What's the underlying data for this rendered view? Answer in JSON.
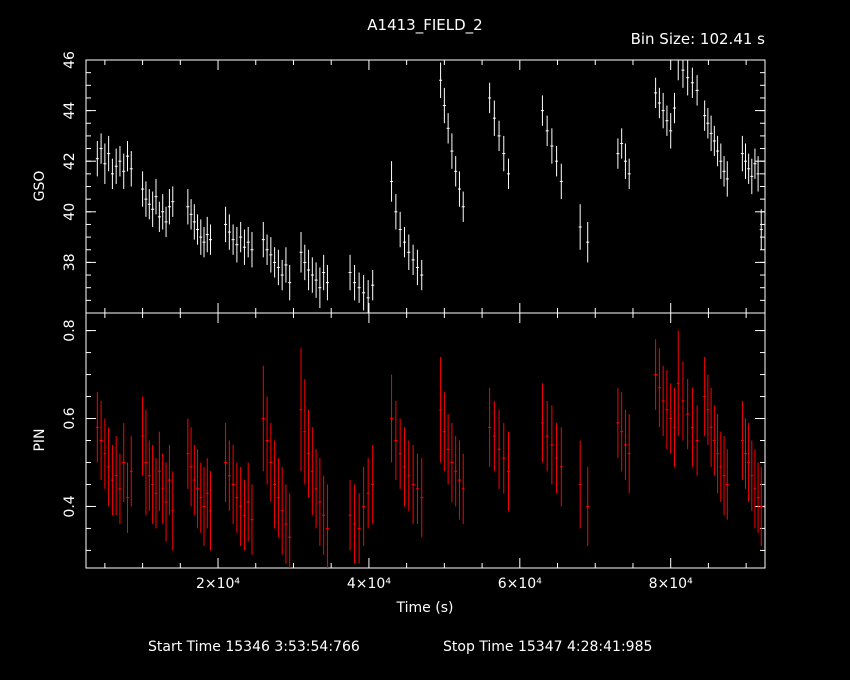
{
  "header": {
    "title": "A1413_FIELD_2",
    "bin_size": "Bin Size: 102.41 s"
  },
  "footer": {
    "start_label": "Start Time 15346  3:53:54:766",
    "stop_label": "Stop Time 15347  4:28:41:985"
  },
  "chart_data": [
    {
      "type": "scatter",
      "name": "GSO",
      "ylabel": "GSO",
      "xlabel": "",
      "color": "#ffffff",
      "xlim": [
        2500,
        92500
      ],
      "ylim": [
        36.0,
        46.0
      ],
      "yticks": [
        38,
        40,
        42,
        44,
        46
      ],
      "ytick_labels": [
        "38",
        "40",
        "42",
        "44",
        "46"
      ],
      "xticks": [
        20000,
        40000,
        60000,
        80000
      ],
      "segments": [
        {
          "start": 4000,
          "end": 8500,
          "y": [
            42.1,
            42.5,
            41.9,
            42.3,
            41.5,
            41.8,
            42.0,
            41.6,
            42.2,
            41.7
          ],
          "err": [
            0.7,
            0.6,
            0.8,
            0.7,
            0.6,
            0.7,
            0.6,
            0.7,
            0.6,
            0.7
          ]
        },
        {
          "start": 10000,
          "end": 14000,
          "y": [
            40.9,
            40.5,
            40.3,
            40.1,
            40.6,
            39.8,
            40.0,
            39.6,
            40.2,
            40.4
          ],
          "err": [
            0.7,
            0.7,
            0.6,
            0.7,
            0.7,
            0.6,
            0.7,
            0.6,
            0.7,
            0.6
          ]
        },
        {
          "start": 16000,
          "end": 19000,
          "y": [
            40.2,
            39.9,
            39.6,
            39.3,
            39.0,
            38.8,
            39.1,
            38.9
          ],
          "err": [
            0.7,
            0.6,
            0.7,
            0.6,
            0.7,
            0.6,
            0.7,
            0.6
          ]
        },
        {
          "start": 21000,
          "end": 24500,
          "y": [
            39.5,
            39.2,
            38.9,
            38.7,
            39.0,
            38.6,
            38.8,
            38.5
          ],
          "err": [
            0.7,
            0.7,
            0.6,
            0.7,
            0.6,
            0.7,
            0.6,
            0.7
          ]
        },
        {
          "start": 26000,
          "end": 29500,
          "y": [
            38.9,
            38.5,
            38.3,
            38.0,
            37.8,
            37.5,
            37.9,
            37.2
          ],
          "err": [
            0.7,
            0.6,
            0.7,
            0.6,
            0.7,
            0.6,
            0.7,
            0.7
          ]
        },
        {
          "start": 31000,
          "end": 34500,
          "y": [
            38.4,
            38.0,
            37.7,
            37.5,
            37.3,
            37.0,
            37.6,
            37.2
          ],
          "err": [
            0.8,
            0.7,
            0.8,
            0.7,
            0.7,
            0.8,
            0.7,
            0.7
          ]
        },
        {
          "start": 37500,
          "end": 40500,
          "y": [
            37.6,
            37.2,
            37.0,
            36.8,
            36.6,
            37.1
          ],
          "err": [
            0.7,
            0.7,
            0.6,
            0.7,
            0.7,
            0.6
          ]
        },
        {
          "start": 43000,
          "end": 47000,
          "y": [
            41.2,
            40.0,
            39.3,
            38.8,
            38.4,
            38.1,
            37.8,
            37.5
          ],
          "err": [
            0.8,
            0.7,
            0.7,
            0.6,
            0.7,
            0.6,
            0.7,
            0.6
          ]
        },
        {
          "start": 49500,
          "end": 52500,
          "y": [
            45.2,
            44.2,
            43.3,
            42.4,
            41.6,
            40.9,
            40.2
          ],
          "err": [
            0.7,
            0.7,
            0.6,
            0.7,
            0.6,
            0.7,
            0.6
          ]
        },
        {
          "start": 56000,
          "end": 58500,
          "y": [
            44.5,
            43.7,
            43.0,
            42.3,
            41.5
          ],
          "err": [
            0.6,
            0.7,
            0.6,
            0.7,
            0.6
          ]
        },
        {
          "start": 63000,
          "end": 65500,
          "y": [
            44.0,
            43.2,
            42.6,
            42.0,
            41.2
          ],
          "err": [
            0.6,
            0.6,
            0.7,
            0.6,
            0.7
          ]
        },
        {
          "start": 68000,
          "end": 69000,
          "y": [
            39.4,
            38.8
          ],
          "err": [
            0.9,
            0.8
          ]
        },
        {
          "start": 73000,
          "end": 74500,
          "y": [
            42.3,
            42.7,
            42.0,
            41.5
          ],
          "err": [
            0.6,
            0.6,
            0.7,
            0.6
          ]
        },
        {
          "start": 78000,
          "end": 80500,
          "y": [
            44.7,
            44.3,
            44.0,
            43.6,
            43.2,
            44.1
          ],
          "err": [
            0.6,
            0.6,
            0.7,
            0.6,
            0.7,
            0.6
          ]
        },
        {
          "start": 81000,
          "end": 83500,
          "y": [
            46.0,
            45.6,
            45.3,
            45.1,
            44.8
          ],
          "err": [
            0.8,
            0.7,
            0.7,
            0.6,
            0.6
          ]
        },
        {
          "start": 84500,
          "end": 87500,
          "y": [
            43.8,
            43.5,
            43.1,
            42.8,
            42.4,
            42.0,
            41.6,
            41.3
          ],
          "err": [
            0.6,
            0.6,
            0.7,
            0.6,
            0.6,
            0.7,
            0.6,
            0.7
          ]
        },
        {
          "start": 89500,
          "end": 92000,
          "y": [
            42.3,
            42.0,
            41.7,
            41.4,
            41.9,
            41.5,
            39.3
          ],
          "err": [
            0.7,
            0.7,
            0.6,
            0.7,
            0.6,
            0.7,
            0.8
          ]
        }
      ]
    },
    {
      "type": "scatter",
      "name": "PIN",
      "ylabel": "PIN",
      "xlabel": "Time (s)",
      "color": "#ff0000",
      "xlim": [
        2500,
        92500
      ],
      "ylim": [
        0.26,
        0.84
      ],
      "yticks": [
        0.4,
        0.6,
        0.8
      ],
      "ytick_labels": [
        "0.4",
        "0.6",
        "0.8"
      ],
      "xticks": [
        20000,
        40000,
        60000,
        80000
      ],
      "xtick_labels": [
        "2×10⁴",
        "4×10⁴",
        "6×10⁴",
        "8×10⁴"
      ],
      "segments": [
        {
          "start": 4000,
          "end": 8500,
          "y": [
            0.58,
            0.55,
            0.52,
            0.49,
            0.46,
            0.47,
            0.44,
            0.5,
            0.42,
            0.48
          ],
          "err": [
            0.08,
            0.09,
            0.08,
            0.09,
            0.08,
            0.09,
            0.08,
            0.09,
            0.08,
            0.08
          ]
        },
        {
          "start": 10000,
          "end": 14000,
          "y": [
            0.56,
            0.5,
            0.47,
            0.45,
            0.43,
            0.48,
            0.44,
            0.41,
            0.46,
            0.39
          ],
          "err": [
            0.09,
            0.12,
            0.08,
            0.09,
            0.08,
            0.09,
            0.08,
            0.09,
            0.08,
            0.09
          ]
        },
        {
          "start": 16000,
          "end": 19000,
          "y": [
            0.52,
            0.49,
            0.46,
            0.44,
            0.42,
            0.4,
            0.43,
            0.39
          ],
          "err": [
            0.08,
            0.09,
            0.08,
            0.09,
            0.08,
            0.09,
            0.08,
            0.09
          ]
        },
        {
          "start": 21000,
          "end": 24500,
          "y": [
            0.5,
            0.47,
            0.45,
            0.42,
            0.4,
            0.38,
            0.41,
            0.37
          ],
          "err": [
            0.09,
            0.08,
            0.09,
            0.08,
            0.09,
            0.08,
            0.09,
            0.08
          ]
        },
        {
          "start": 26000,
          "end": 29500,
          "y": [
            0.6,
            0.55,
            0.5,
            0.45,
            0.42,
            0.39,
            0.36,
            0.33
          ],
          "err": [
            0.12,
            0.1,
            0.09,
            0.1,
            0.09,
            0.1,
            0.09,
            0.1
          ]
        },
        {
          "start": 31000,
          "end": 34500,
          "y": [
            0.62,
            0.57,
            0.52,
            0.48,
            0.44,
            0.41,
            0.38,
            0.35
          ],
          "err": [
            0.14,
            0.12,
            0.1,
            0.1,
            0.09,
            0.1,
            0.09,
            0.1
          ]
        },
        {
          "start": 37500,
          "end": 40500,
          "y": [
            0.38,
            0.36,
            0.35,
            0.4,
            0.43,
            0.45
          ],
          "err": [
            0.08,
            0.09,
            0.08,
            0.09,
            0.08,
            0.09
          ]
        },
        {
          "start": 43000,
          "end": 47000,
          "y": [
            0.6,
            0.55,
            0.52,
            0.49,
            0.47,
            0.45,
            0.44,
            0.42
          ],
          "err": [
            0.1,
            0.09,
            0.08,
            0.09,
            0.08,
            0.09,
            0.08,
            0.09
          ]
        },
        {
          "start": 49500,
          "end": 52500,
          "y": [
            0.62,
            0.57,
            0.53,
            0.5,
            0.48,
            0.46,
            0.44
          ],
          "err": [
            0.12,
            0.09,
            0.08,
            0.09,
            0.08,
            0.09,
            0.08
          ]
        },
        {
          "start": 56000,
          "end": 58500,
          "y": [
            0.58,
            0.56,
            0.53,
            0.51,
            0.48
          ],
          "err": [
            0.09,
            0.08,
            0.09,
            0.08,
            0.09
          ]
        },
        {
          "start": 63000,
          "end": 65500,
          "y": [
            0.59,
            0.56,
            0.54,
            0.51,
            0.49
          ],
          "err": [
            0.09,
            0.08,
            0.09,
            0.08,
            0.09
          ]
        },
        {
          "start": 68000,
          "end": 69000,
          "y": [
            0.45,
            0.4
          ],
          "err": [
            0.1,
            0.09
          ]
        },
        {
          "start": 73000,
          "end": 74500,
          "y": [
            0.59,
            0.57,
            0.54,
            0.52
          ],
          "err": [
            0.08,
            0.09,
            0.08,
            0.09
          ]
        },
        {
          "start": 78000,
          "end": 80500,
          "y": [
            0.7,
            0.67,
            0.64,
            0.62,
            0.6,
            0.58
          ],
          "err": [
            0.08,
            0.09,
            0.08,
            0.09,
            0.08,
            0.09
          ]
        },
        {
          "start": 81000,
          "end": 83500,
          "y": [
            0.68,
            0.64,
            0.61,
            0.58,
            0.55
          ],
          "err": [
            0.12,
            0.09,
            0.08,
            0.09,
            0.08
          ]
        },
        {
          "start": 84500,
          "end": 87500,
          "y": [
            0.65,
            0.62,
            0.58,
            0.55,
            0.52,
            0.49,
            0.47,
            0.45
          ],
          "err": [
            0.09,
            0.08,
            0.09,
            0.08,
            0.09,
            0.08,
            0.09,
            0.08
          ]
        },
        {
          "start": 89500,
          "end": 92000,
          "y": [
            0.55,
            0.52,
            0.5,
            0.47,
            0.44,
            0.42,
            0.4
          ],
          "err": [
            0.09,
            0.08,
            0.09,
            0.08,
            0.09,
            0.08,
            0.09
          ]
        }
      ]
    }
  ]
}
